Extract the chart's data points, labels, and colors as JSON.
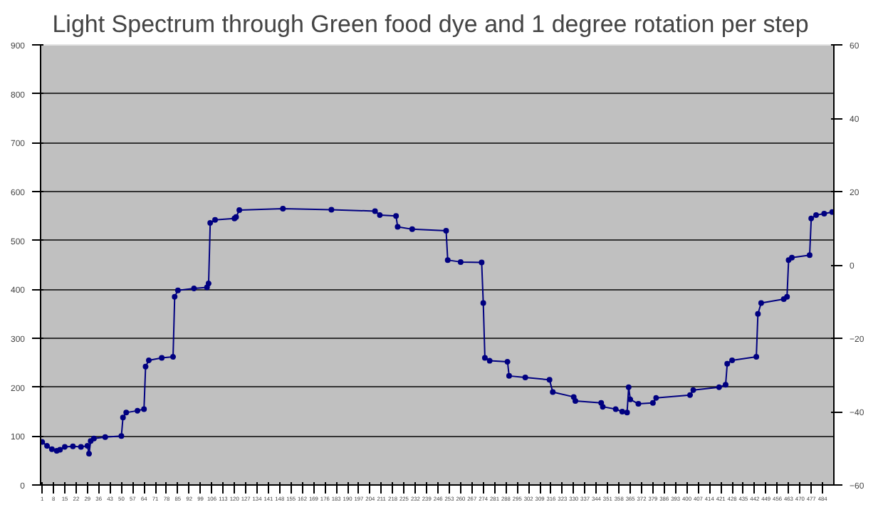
{
  "chart_data": {
    "type": "line",
    "title": "Light Spectrum through  Green food dye and 1 degree rotation  per step",
    "xlim": [
      0,
      491
    ],
    "xticks": [
      1,
      8,
      15,
      22,
      29,
      36,
      43,
      50,
      57,
      64,
      71,
      78,
      85,
      92,
      99,
      106,
      113,
      120,
      127,
      134,
      141,
      148,
      155,
      162,
      169,
      176,
      183,
      190,
      197,
      204,
      211,
      218,
      225,
      232,
      239,
      246,
      253,
      260,
      267,
      274,
      281,
      288,
      295,
      302,
      309,
      316,
      323,
      330,
      337,
      344,
      351,
      358,
      365,
      372,
      379,
      386,
      393,
      400,
      407,
      414,
      421,
      428,
      435,
      442,
      449,
      456,
      463,
      470,
      477,
      484
    ],
    "ylim": [
      0,
      900
    ],
    "yticks": [
      0,
      100,
      200,
      300,
      400,
      500,
      600,
      700,
      800,
      900
    ],
    "y2lim": [
      -60,
      60
    ],
    "y2ticks": [
      -60,
      -40,
      -20,
      0,
      20,
      40,
      60
    ],
    "grid": "y",
    "marker": "circle",
    "line_style": "solid",
    "series": [
      {
        "color": "#000080",
        "x": [
          1,
          4,
          7,
          10,
          12,
          15,
          20,
          25,
          29,
          30,
          31,
          33,
          40,
          50,
          51,
          53,
          60,
          64,
          65,
          67,
          75,
          82,
          83,
          85,
          95,
          103,
          104,
          105,
          108,
          120,
          121,
          123,
          150,
          180,
          207,
          210,
          220,
          221,
          230,
          251,
          252,
          260,
          273,
          274,
          275,
          278,
          289,
          290,
          300,
          315,
          317,
          330,
          331,
          347,
          348,
          356,
          360,
          363,
          364,
          365,
          370,
          379,
          381,
          402,
          404,
          420,
          424,
          425,
          428,
          443,
          444,
          446,
          460,
          462,
          463,
          465,
          476,
          477,
          480,
          485,
          490
        ],
        "values": [
          88,
          80,
          73,
          70,
          72,
          78,
          79,
          78,
          80,
          64,
          90,
          95,
          98,
          100,
          138,
          148,
          152,
          155,
          242,
          255,
          260,
          262,
          385,
          398,
          402,
          404,
          412,
          536,
          542,
          545,
          548,
          562,
          565,
          563,
          560,
          552,
          550,
          528,
          523,
          520,
          460,
          456,
          455,
          372,
          260,
          254,
          252,
          223,
          220,
          215,
          190,
          180,
          172,
          168,
          160,
          155,
          150,
          148,
          200,
          175,
          166,
          168,
          178,
          184,
          194,
          200,
          205,
          248,
          255,
          262,
          350,
          372,
          380,
          385,
          460,
          465,
          470,
          545,
          552,
          555,
          558
        ]
      }
    ]
  }
}
